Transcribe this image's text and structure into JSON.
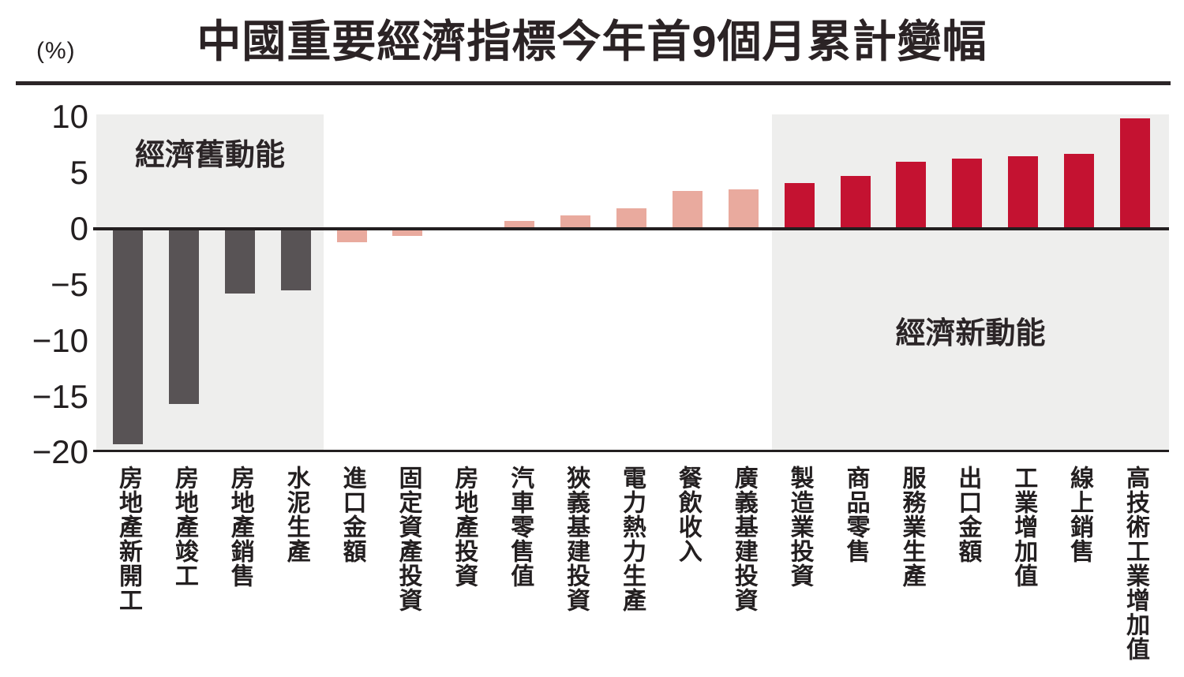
{
  "header": {
    "unit_label": "(%)",
    "title": "中國重要經濟指標今年首9個月累計變幅"
  },
  "chart_data": {
    "type": "bar",
    "title": "中國重要經濟指標今年首9個月累計變幅",
    "unit_label": "(%)",
    "ylabel": "%",
    "ylim": [
      -20,
      10
    ],
    "grid": false,
    "legend_position": "none",
    "ytick_values": [
      10,
      5,
      0,
      -5,
      -10,
      -15,
      -20
    ],
    "ytick_labels": [
      "10",
      "5",
      "0",
      "−5",
      "−10",
      "−15",
      "−20"
    ],
    "region_labels": {
      "old": "經濟舊動能",
      "new": "經濟新動能"
    },
    "categories": [
      "房地產新開工",
      "房地產竣工",
      "房地產銷售",
      "水泥生產",
      "進口金額",
      "固定資產投資",
      "房地產投資",
      "汽車零售值",
      "狹義基建投資",
      "電力熱力生產",
      "餐飲收入",
      "廣義基建投資",
      "製造業投資",
      "商品零售",
      "服務業生產",
      "出口金額",
      "工業增加值",
      "線上銷售",
      "高技術工業增加值"
    ],
    "values": [
      -19.3,
      -15.7,
      -5.8,
      -5.5,
      -1.2,
      -0.6,
      0,
      0.7,
      1.2,
      1.8,
      3.4,
      3.5,
      4.1,
      4.7,
      6.0,
      6.3,
      6.5,
      6.7,
      9.9
    ],
    "groups": [
      "old",
      "old",
      "old",
      "old",
      "mid",
      "mid",
      "mid",
      "mid",
      "mid",
      "mid",
      "mid",
      "mid",
      "new",
      "new",
      "new",
      "new",
      "new",
      "new",
      "new"
    ],
    "colors": {
      "old": "#585355",
      "mid": "#e9aa9e",
      "new": "#c41231",
      "band": "#eeeeed",
      "axis": "#231f20"
    }
  }
}
